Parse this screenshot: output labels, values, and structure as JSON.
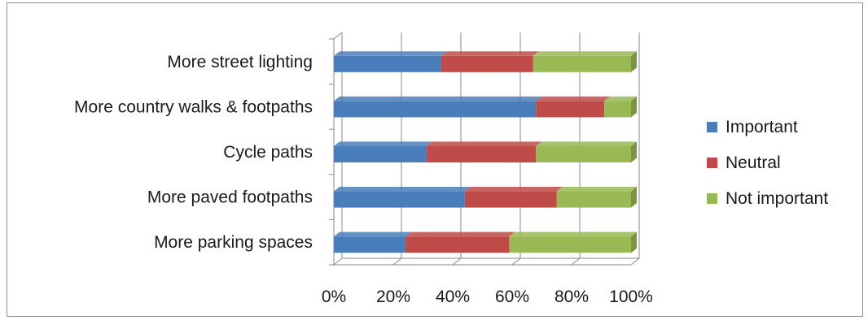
{
  "chart_data": {
    "type": "bar",
    "orientation": "horizontal",
    "stacked": "percent",
    "title": "",
    "xlabel": "",
    "ylabel": "",
    "xlim": [
      0,
      100
    ],
    "x_ticks": [
      "0%",
      "20%",
      "40%",
      "60%",
      "80%",
      "100%"
    ],
    "categories": [
      "More parking spaces",
      "More paved footpaths",
      "Cycle paths",
      "More country walks & footpaths",
      "More street lighting"
    ],
    "series": [
      {
        "name": "Important",
        "color": "#4a7ebb",
        "values": [
          24,
          44,
          31,
          68,
          36
        ]
      },
      {
        "name": "Neutral",
        "color": "#be4b48",
        "values": [
          35,
          31,
          37,
          23,
          31
        ]
      },
      {
        "name": "Not important",
        "color": "#98b954",
        "values": [
          41,
          25,
          32,
          9,
          33
        ]
      }
    ],
    "grid": true,
    "legend_position": "right"
  }
}
